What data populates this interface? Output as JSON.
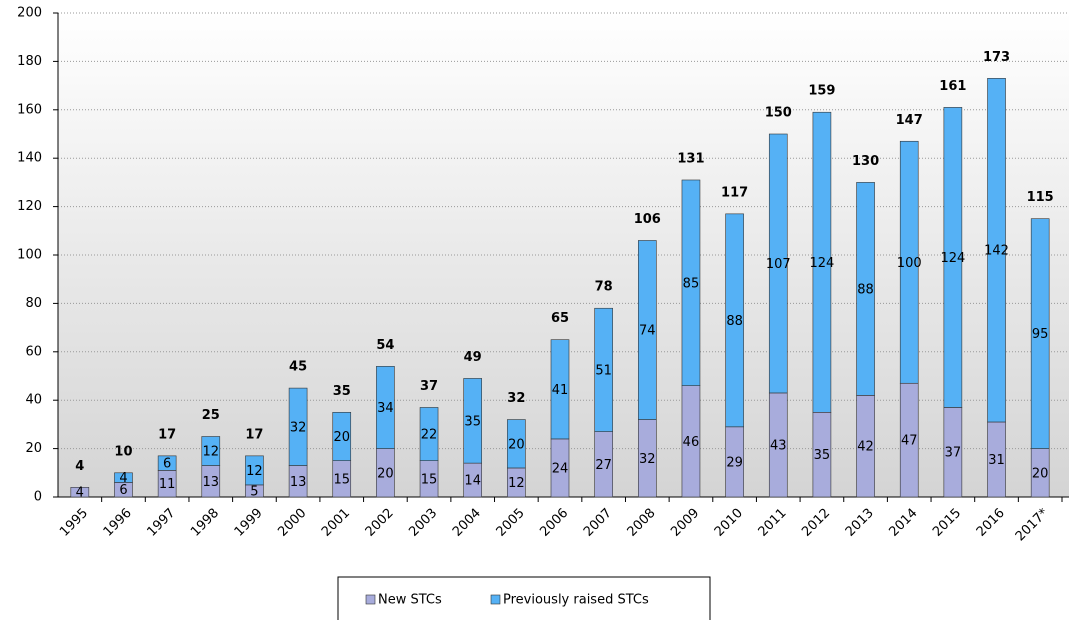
{
  "chart_data": {
    "type": "stacked_bar",
    "categories": [
      "1995",
      "1996",
      "1997",
      "1998",
      "1999",
      "2000",
      "2001",
      "2002",
      "2003",
      "2004",
      "2005",
      "2006",
      "2007",
      "2008",
      "2009",
      "2010",
      "2011",
      "2012",
      "2013",
      "2014",
      "2015",
      "2016",
      "2017*"
    ],
    "series": [
      {
        "name": "New STCs",
        "color": "#a8acdc",
        "values": [
          4,
          6,
          11,
          13,
          5,
          13,
          15,
          20,
          15,
          14,
          12,
          24,
          27,
          32,
          46,
          29,
          43,
          35,
          42,
          47,
          37,
          31,
          20
        ]
      },
      {
        "name": "Previously raised STCs",
        "color": "#55b1f5",
        "values": [
          null,
          4,
          6,
          12,
          12,
          32,
          20,
          34,
          22,
          35,
          20,
          41,
          51,
          74,
          85,
          88,
          107,
          124,
          88,
          100,
          124,
          142,
          95
        ]
      }
    ],
    "totals": [
      4,
      10,
      17,
      25,
      17,
      45,
      35,
      54,
      37,
      49,
      32,
      65,
      78,
      106,
      131,
      117,
      150,
      159,
      130,
      147,
      161,
      173,
      115
    ],
    "ylim": [
      0,
      200
    ],
    "yticks": [
      0,
      20,
      40,
      60,
      80,
      100,
      120,
      140,
      160,
      180,
      200
    ],
    "grid": true,
    "legend": "bottom"
  }
}
